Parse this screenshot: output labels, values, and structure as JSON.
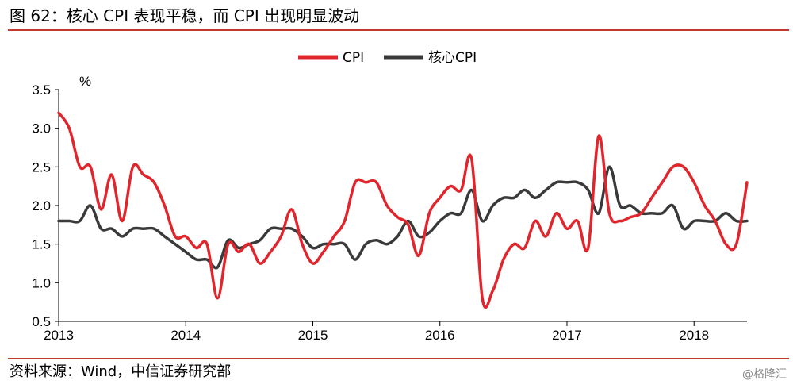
{
  "figure": {
    "title": "图 62：核心 CPI 表现平稳，而 CPI 出现明显波动",
    "source": "资料来源：Wind，中信证券研究部",
    "watermark": "@格隆汇"
  },
  "chart_data": {
    "type": "line",
    "ylabel": "%",
    "ylim": [
      0.5,
      3.5
    ],
    "yticks": [
      0.5,
      1.0,
      1.5,
      2.0,
      2.5,
      3.0,
      3.5
    ],
    "ytick_labels": [
      "0.5",
      "1.0",
      "1.5",
      "2.0",
      "2.5",
      "3.0",
      "3.5"
    ],
    "xlim": [
      "2013-01",
      "2018-06"
    ],
    "xticks": [
      "2013-01",
      "2014-01",
      "2015-01",
      "2016-01",
      "2017-01",
      "2018-01"
    ],
    "xtick_labels": [
      "2013",
      "2014",
      "2015",
      "2016",
      "2017",
      "2018"
    ],
    "grid": false,
    "legend": "top-center",
    "x": [
      "2013-01",
      "2013-02",
      "2013-03",
      "2013-04",
      "2013-05",
      "2013-06",
      "2013-07",
      "2013-08",
      "2013-09",
      "2013-10",
      "2013-11",
      "2013-12",
      "2014-01",
      "2014-02",
      "2014-03",
      "2014-04",
      "2014-05",
      "2014-06",
      "2014-07",
      "2014-08",
      "2014-09",
      "2014-10",
      "2014-11",
      "2014-12",
      "2015-01",
      "2015-02",
      "2015-03",
      "2015-04",
      "2015-05",
      "2015-06",
      "2015-07",
      "2015-08",
      "2015-09",
      "2015-10",
      "2015-11",
      "2015-12",
      "2016-01",
      "2016-02",
      "2016-03",
      "2016-04",
      "2016-05",
      "2016-06",
      "2016-07",
      "2016-08",
      "2016-09",
      "2016-10",
      "2016-11",
      "2016-12",
      "2017-01",
      "2017-02",
      "2017-03",
      "2017-04",
      "2017-05",
      "2017-06",
      "2017-07",
      "2017-08",
      "2017-09",
      "2017-10",
      "2017-11",
      "2017-12",
      "2018-01",
      "2018-02",
      "2018-03",
      "2018-04",
      "2018-05",
      "2018-06"
    ],
    "series": [
      {
        "name": "CPI",
        "color": "#e0262c",
        "values": [
          3.2,
          3.0,
          2.5,
          2.5,
          1.95,
          2.4,
          1.8,
          2.5,
          2.4,
          2.3,
          2.0,
          1.6,
          1.6,
          1.45,
          1.5,
          0.8,
          1.5,
          1.4,
          1.5,
          1.25,
          1.4,
          1.6,
          1.95,
          1.5,
          1.25,
          1.4,
          1.6,
          1.8,
          2.3,
          2.3,
          2.3,
          2.0,
          1.85,
          1.75,
          1.35,
          1.9,
          2.1,
          2.25,
          2.2,
          2.6,
          0.8,
          0.9,
          1.3,
          1.5,
          1.45,
          1.8,
          1.6,
          1.9,
          1.7,
          1.8,
          1.45,
          2.9,
          1.9,
          1.8,
          1.85,
          1.9,
          2.1,
          2.3,
          2.5,
          2.5,
          2.3,
          2.0,
          1.8,
          1.5,
          1.5,
          2.3
        ]
      },
      {
        "name": "核心CPI",
        "color": "#3a3a3a",
        "values": [
          1.8,
          1.8,
          1.8,
          2.0,
          1.7,
          1.7,
          1.6,
          1.7,
          1.7,
          1.7,
          1.6,
          1.5,
          1.4,
          1.3,
          1.3,
          1.2,
          1.55,
          1.45,
          1.5,
          1.55,
          1.7,
          1.7,
          1.7,
          1.6,
          1.45,
          1.5,
          1.5,
          1.5,
          1.3,
          1.5,
          1.55,
          1.5,
          1.6,
          1.8,
          1.6,
          1.65,
          1.8,
          1.9,
          1.9,
          2.2,
          1.8,
          2.0,
          2.1,
          2.1,
          2.2,
          2.1,
          2.2,
          2.3,
          2.3,
          2.3,
          2.2,
          1.9,
          2.5,
          2.0,
          2.0,
          1.9,
          1.9,
          1.9,
          2.0,
          1.7,
          1.8,
          1.8,
          1.8,
          1.9,
          1.8,
          1.8
        ]
      }
    ]
  }
}
